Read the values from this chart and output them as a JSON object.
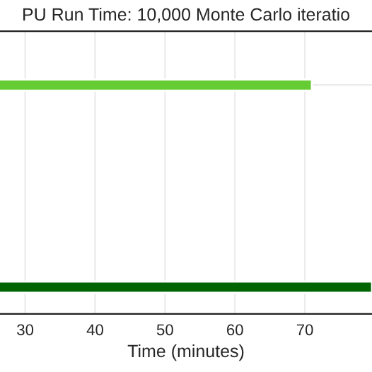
{
  "chart_data": {
    "type": "bar",
    "orientation": "horizontal",
    "title": "PU Run Time: 10,000 Monte Carlo iteratio",
    "xlabel": "Time (minutes)",
    "categories": [
      null,
      null
    ],
    "values": [
      71,
      79.6
    ],
    "colors": [
      "#66cc33",
      "#006400"
    ],
    "xlim": [
      26.4,
      79.6
    ],
    "xticks": [
      30,
      40,
      50,
      60,
      70
    ],
    "tick_labels": "x",
    "grid": true
  }
}
